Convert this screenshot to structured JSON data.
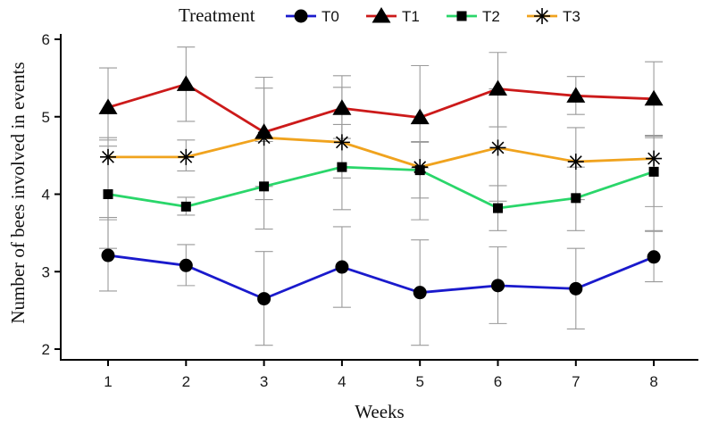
{
  "chart_data": {
    "type": "line",
    "title": "",
    "xlabel": "Weeks",
    "ylabel": "Number of bees involved in events",
    "x": [
      1,
      2,
      3,
      4,
      5,
      6,
      7,
      8
    ],
    "x_ticks": [
      "1",
      "2",
      "3",
      "4",
      "5",
      "6",
      "7",
      "8"
    ],
    "ylim": [
      2,
      6
    ],
    "y_ticks": [
      "2",
      "3",
      "4",
      "5",
      "6"
    ],
    "grid": false,
    "legend": {
      "title": "Treatment",
      "position": "top"
    },
    "series": [
      {
        "name": "T0",
        "color": "#1a1acc",
        "marker": "circle",
        "values": [
          3.21,
          3.08,
          2.65,
          3.06,
          2.73,
          2.82,
          2.78,
          3.19
        ],
        "err_low": [
          2.75,
          2.82,
          2.05,
          2.54,
          2.05,
          2.33,
          2.26,
          2.87
        ],
        "err_high": [
          3.7,
          3.35,
          3.26,
          3.58,
          3.41,
          3.32,
          3.3,
          3.52
        ]
      },
      {
        "name": "T1",
        "color": "#cc1a1a",
        "marker": "triangle",
        "values": [
          5.12,
          5.42,
          4.8,
          5.11,
          4.99,
          5.36,
          5.27,
          5.23
        ],
        "err_low": [
          4.7,
          4.94,
          4.1,
          4.72,
          4.34,
          4.87,
          5.03,
          4.76
        ],
        "err_high": [
          5.63,
          5.9,
          5.51,
          5.53,
          5.66,
          5.83,
          5.52,
          5.71
        ]
      },
      {
        "name": "T2",
        "color": "#2ad66a",
        "marker": "square",
        "values": [
          4.0,
          3.84,
          4.1,
          4.35,
          4.31,
          3.82,
          3.95,
          4.29
        ],
        "err_low": [
          3.3,
          3.73,
          3.55,
          3.8,
          3.95,
          3.53,
          3.53,
          3.84
        ],
        "err_high": [
          4.62,
          3.96,
          4.68,
          4.9,
          4.67,
          4.11,
          4.35,
          4.75
        ]
      },
      {
        "name": "T3",
        "color": "#f0a31e",
        "marker": "asterisk",
        "values": [
          4.48,
          4.48,
          4.73,
          4.67,
          4.35,
          4.6,
          4.42,
          4.46
        ],
        "err_low": [
          3.67,
          4.3,
          3.93,
          4.21,
          3.67,
          3.91,
          3.93,
          3.53
        ],
        "err_high": [
          4.73,
          4.7,
          5.37,
          5.38,
          4.68,
          5.36,
          4.86,
          4.73
        ]
      }
    ]
  }
}
